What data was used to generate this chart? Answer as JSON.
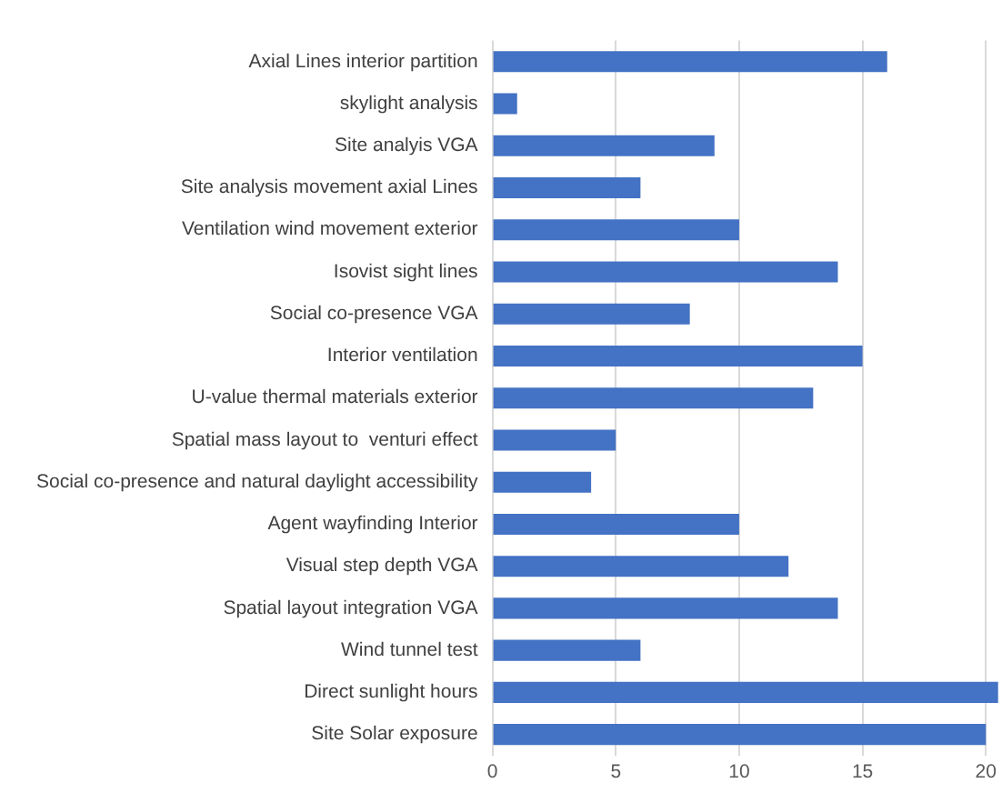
{
  "chart_data": {
    "type": "bar",
    "orientation": "horizontal",
    "categories": [
      "Axial Lines interior partition",
      "skylight analysis",
      "Site analyis VGA",
      "Site analysis movement axial Lines",
      "Ventilation wind movement exterior",
      "Isovist sight lines",
      "Social co-presence VGA",
      "Interior ventilation",
      "U-value thermal materials exterior",
      "Spatial mass layout to  venturi effect",
      "Social co-presence and natural daylight accessibility",
      "Agent wayfinding Interior",
      "Visual step depth VGA",
      "Spatial layout integration VGA",
      "Wind tunnel test",
      "Direct sunlight hours",
      "Site Solar exposure"
    ],
    "values": [
      16,
      1,
      9,
      6,
      10,
      14,
      8,
      15,
      13,
      5,
      4,
      10,
      12,
      14,
      6,
      20.5,
      20
    ],
    "color": "#4472c4",
    "xlim": [
      0,
      20.5
    ],
    "xticks": [
      0,
      5,
      10,
      15,
      20
    ],
    "grid": "x"
  }
}
